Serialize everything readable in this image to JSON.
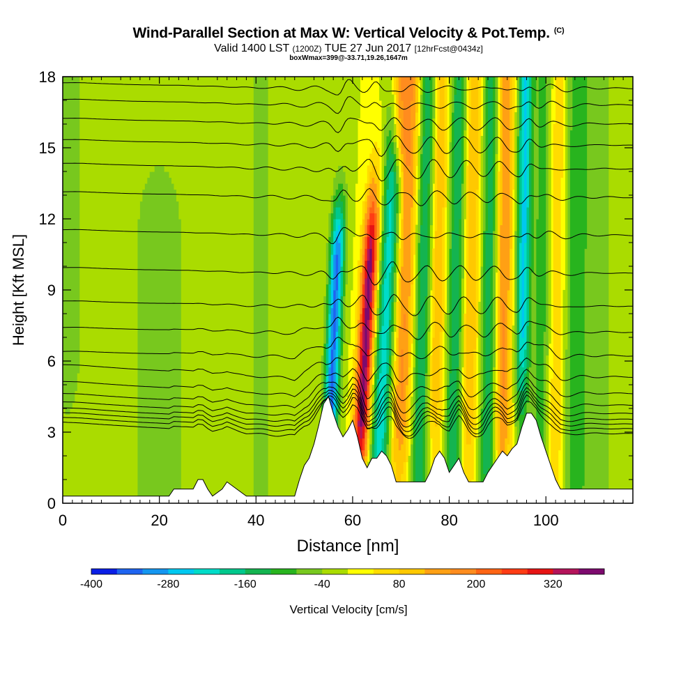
{
  "header": {
    "title": "Wind-Parallel Section at Max W: Vertical Velocity & Pot.Temp.",
    "copyright": "(C)",
    "valid_main": "Valid 1400 LST",
    "valid_utc": "(1200Z)",
    "valid_date": "TUE 27 Jun 2017",
    "forecast": "[12hrFcst@0434z]",
    "box_info": "boxWmax=399@-33.71,19.26,1647m"
  },
  "chart_data": {
    "type": "heatmap",
    "title": "Wind-Parallel Section at Max W: Vertical Velocity & Pot.Temp.",
    "xlabel": "Distance [nm]",
    "ylabel": "Height [Kft MSL]",
    "xlim": [
      0,
      118
    ],
    "ylim": [
      0,
      18
    ],
    "x_ticks": [
      0,
      20,
      40,
      60,
      80,
      100
    ],
    "y_ticks": [
      0,
      3,
      6,
      9,
      12,
      15,
      18
    ],
    "grid": false,
    "colorbar": {
      "label": "Vertical Velocity [cm/s]",
      "placement": "bottom",
      "tick_labels": [
        "-400",
        "-280",
        "-160",
        "-40",
        "80",
        "200",
        "320"
      ],
      "tick_values": [
        -400,
        -280,
        -160,
        -40,
        80,
        200,
        320
      ],
      "levels": [
        -400,
        -360,
        -320,
        -280,
        -240,
        -200,
        -160,
        -120,
        -80,
        -40,
        0,
        40,
        80,
        120,
        160,
        200,
        240,
        280,
        320,
        360,
        400
      ],
      "colors": [
        "#0a1ee6",
        "#1e64f0",
        "#1496f0",
        "#00c8f0",
        "#00dcc8",
        "#00c88c",
        "#14b450",
        "#28b41e",
        "#78c81e",
        "#aadc00",
        "#ffff00",
        "#ffdc00",
        "#ffc800",
        "#ffa014",
        "#ff8c1e",
        "#ff6414",
        "#ff3c14",
        "#e61414",
        "#b4145a",
        "#7d0a6e"
      ]
    },
    "terrain": [
      [
        0,
        0.3
      ],
      [
        22,
        0.3
      ],
      [
        23,
        0.6
      ],
      [
        27,
        0.6
      ],
      [
        28,
        1.0
      ],
      [
        29,
        1.0
      ],
      [
        30,
        0.6
      ],
      [
        31,
        0.3
      ],
      [
        33,
        0.6
      ],
      [
        34,
        0.9
      ],
      [
        36,
        0.6
      ],
      [
        38,
        0.3
      ],
      [
        48,
        0.3
      ],
      [
        49,
        1.0
      ],
      [
        50,
        1.6
      ],
      [
        51,
        1.9
      ],
      [
        52,
        2.5
      ],
      [
        53,
        3.3
      ],
      [
        54,
        4.2
      ],
      [
        55,
        4.5
      ],
      [
        56,
        3.8
      ],
      [
        57,
        3.2
      ],
      [
        58,
        2.8
      ],
      [
        59,
        3.1
      ],
      [
        60,
        3.5
      ],
      [
        61,
        2.8
      ],
      [
        62,
        1.9
      ],
      [
        63,
        1.5
      ],
      [
        64,
        1.9
      ],
      [
        65,
        1.9
      ],
      [
        66,
        2.2
      ],
      [
        67,
        2.0
      ],
      [
        68,
        1.6
      ],
      [
        69,
        0.9
      ],
      [
        75,
        0.9
      ],
      [
        76,
        1.3
      ],
      [
        77,
        1.9
      ],
      [
        78,
        2.2
      ],
      [
        79,
        1.9
      ],
      [
        80,
        1.3
      ],
      [
        81,
        1.6
      ],
      [
        82,
        1.9
      ],
      [
        83,
        1.3
      ],
      [
        84,
        0.9
      ],
      [
        87,
        0.9
      ],
      [
        88,
        1.3
      ],
      [
        89,
        1.6
      ],
      [
        90,
        1.9
      ],
      [
        91,
        2.2
      ],
      [
        92,
        2.0
      ],
      [
        93,
        2.3
      ],
      [
        94,
        2.5
      ],
      [
        95,
        3.2
      ],
      [
        96,
        3.8
      ],
      [
        97,
        3.8
      ],
      [
        98,
        3.5
      ],
      [
        99,
        2.8
      ],
      [
        100,
        2.2
      ],
      [
        101,
        1.6
      ],
      [
        102,
        1.0
      ],
      [
        103,
        0.6
      ],
      [
        118,
        0.6
      ]
    ]
  }
}
